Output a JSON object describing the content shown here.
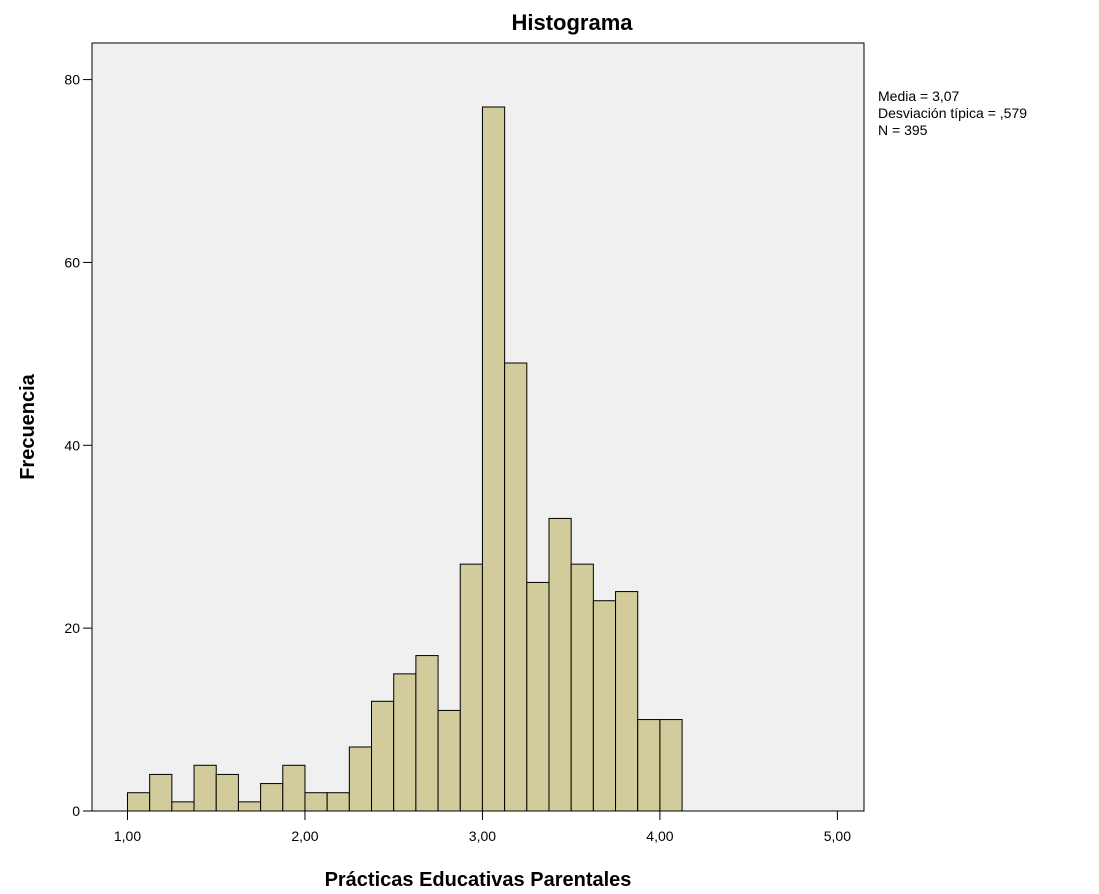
{
  "chart_data": {
    "type": "bar",
    "title": "Histograma",
    "xlabel": "Prácticas Educativas Parentales",
    "ylabel": "Frecuencia",
    "xlim": [
      0.8,
      5.15
    ],
    "ylim": [
      0,
      84
    ],
    "x_ticks": [
      1,
      2,
      3,
      4,
      5
    ],
    "x_tick_labels": [
      "1,00",
      "2,00",
      "3,00",
      "4,00",
      "5,00"
    ],
    "y_ticks": [
      0,
      20,
      40,
      60,
      80
    ],
    "y_tick_labels": [
      "0",
      "20",
      "40",
      "60",
      "80"
    ],
    "bin_start": 1.0,
    "bin_width": 0.125,
    "values": [
      2,
      4,
      1,
      5,
      4,
      1,
      3,
      5,
      2,
      2,
      7,
      12,
      15,
      17,
      11,
      27,
      77,
      49,
      25,
      32,
      27,
      23,
      24,
      10,
      10
    ],
    "bar_color": "#d2cb9b",
    "bar_outline": "#000000",
    "plot_background": "#f0f0f0",
    "grid": false,
    "legend": "right",
    "stats": [
      "Media = 3,07",
      "Desviación típica = ,579",
      "N = 395"
    ]
  }
}
